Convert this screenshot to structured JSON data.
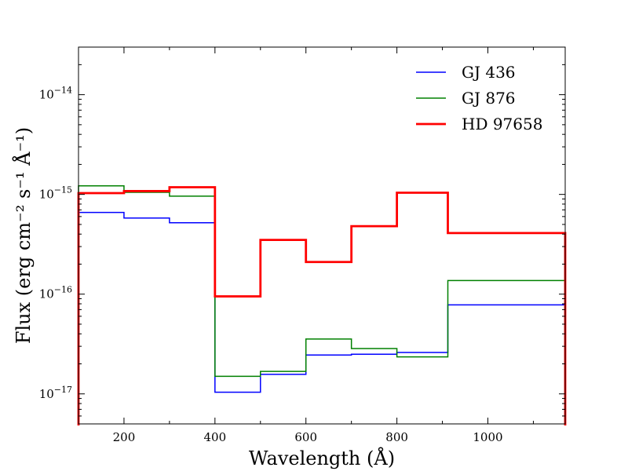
{
  "chart_data": {
    "type": "line",
    "drawstyle": "steps-post",
    "title": "",
    "xlabel": "Wavelength (Å)",
    "ylabel": "Flux (erg cm⁻² s⁻¹ Å⁻¹)",
    "xlim": [
      100,
      1170
    ],
    "ylim": [
      5e-18,
      3e-14
    ],
    "yscale": "log",
    "xticks": [
      200,
      400,
      600,
      800,
      1000
    ],
    "xtick_labels": [
      "200",
      "400",
      "600",
      "800",
      "1000"
    ],
    "yticks": [
      1e-17,
      1e-16,
      1e-15,
      1e-14
    ],
    "ytick_labels": [
      {
        "base": "10",
        "exp": "−17"
      },
      {
        "base": "10",
        "exp": "−16"
      },
      {
        "base": "10",
        "exp": "−15"
      },
      {
        "base": "10",
        "exp": "−14"
      }
    ],
    "legend_position": "top-right",
    "x_edges": [
      100,
      200,
      300,
      400,
      500,
      600,
      700,
      800,
      912,
      1170
    ],
    "series": [
      {
        "name": "GJ 436",
        "color": "#0000ff",
        "width": 1.5,
        "values": [
          6.6e-16,
          5.8e-16,
          5.2e-16,
          1.04e-17,
          1.57e-17,
          2.45e-17,
          2.5e-17,
          2.6e-17,
          7.8e-17
        ]
      },
      {
        "name": "GJ 876",
        "color": "#008000",
        "width": 1.5,
        "values": [
          1.22e-15,
          1.05e-15,
          9.6e-16,
          1.5e-17,
          1.68e-17,
          3.55e-17,
          2.85e-17,
          2.35e-17,
          1.37e-16
        ]
      },
      {
        "name": "HD 97658",
        "color": "#ff0000",
        "width": 2.8,
        "values": [
          1.03e-15,
          1.08e-15,
          1.18e-15,
          9.5e-17,
          3.5e-16,
          2.1e-16,
          4.8e-16,
          1.04e-15,
          4.1e-16
        ]
      }
    ]
  }
}
